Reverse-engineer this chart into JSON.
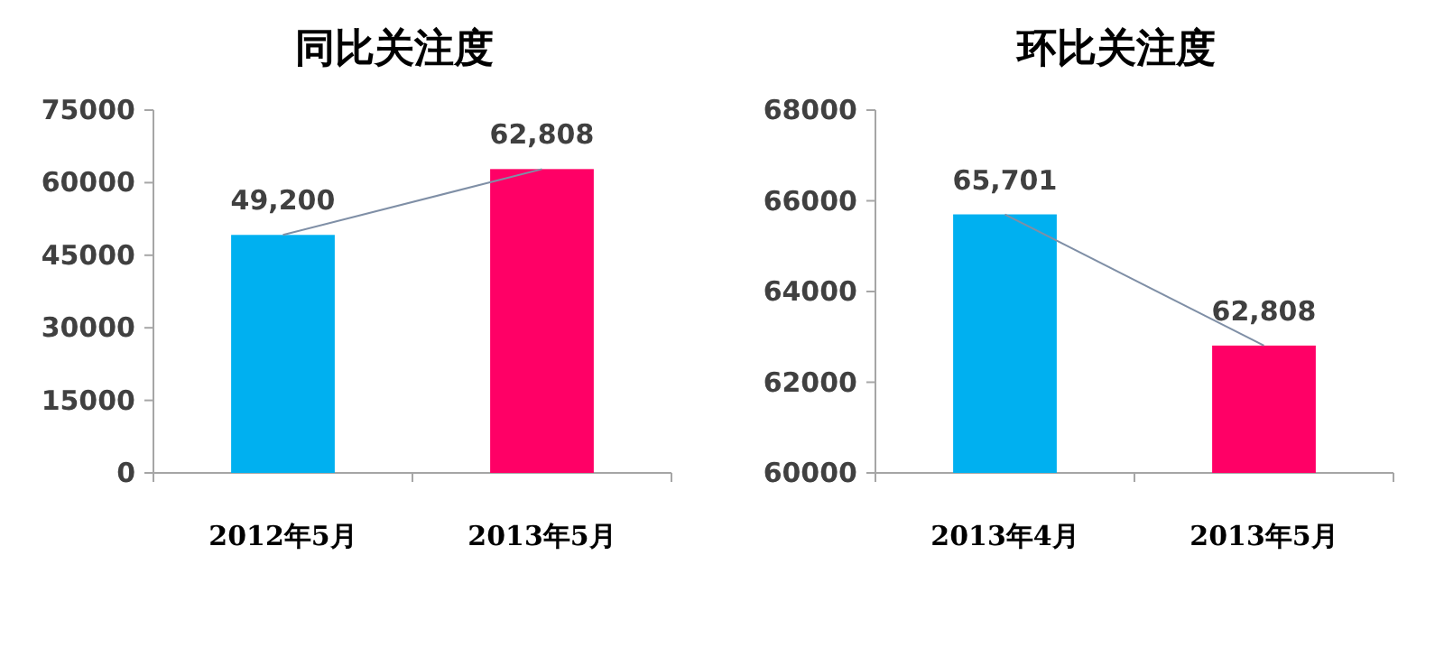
{
  "chart_data": [
    {
      "type": "bar",
      "title": "同比关注度",
      "categories": [
        "2012年5月",
        "2013年5月"
      ],
      "ylim": [
        0,
        75000
      ],
      "yticks": [
        0,
        15000,
        30000,
        45000,
        60000,
        75000
      ],
      "series": [
        {
          "colors": [
            "#00b0f0",
            "#ff0066"
          ],
          "values": [
            49200,
            62808
          ],
          "value_labels": [
            "49,200",
            "62,808"
          ]
        },
        {
          "type": "line",
          "color": "#7f8fa6",
          "values": [
            49200,
            62808
          ]
        }
      ]
    },
    {
      "type": "bar",
      "title": "环比关注度",
      "categories": [
        "2013年4月",
        "2013年5月"
      ],
      "ylim": [
        60000,
        68000
      ],
      "yticks": [
        60000,
        62000,
        64000,
        66000,
        68000
      ],
      "series": [
        {
          "colors": [
            "#00b0f0",
            "#ff0066"
          ],
          "values": [
            65701,
            62808
          ],
          "value_labels": [
            "65,701",
            "62,808"
          ]
        },
        {
          "type": "line",
          "color": "#7f8fa6",
          "values": [
            65701,
            62808
          ]
        }
      ]
    }
  ]
}
